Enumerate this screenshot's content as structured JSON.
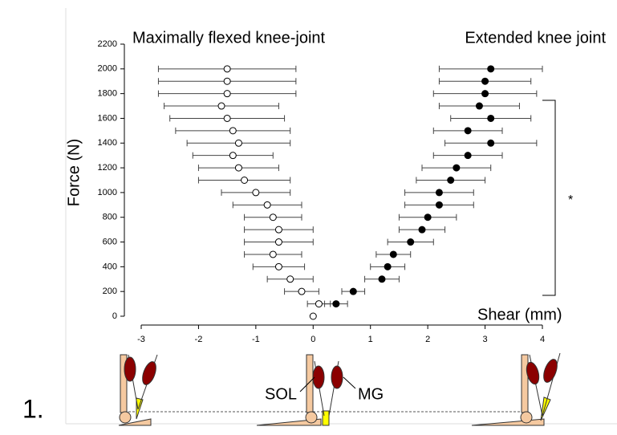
{
  "chart_data": {
    "type": "scatter",
    "ylabel": "Force (N)",
    "xlabel": "Shear (mm)",
    "xlim": [
      -3,
      4
    ],
    "xticks": [
      -3,
      -2,
      -1,
      0,
      1,
      2,
      3,
      4
    ],
    "ylim": [
      0,
      2200
    ],
    "yticks": [
      0,
      200,
      400,
      600,
      800,
      1000,
      1200,
      1400,
      1600,
      1800,
      2000,
      2200
    ],
    "series": [
      {
        "name": "Maximally flexed knee-joint",
        "color": "#ffffff",
        "y": [
          0,
          100,
          200,
          300,
          400,
          500,
          600,
          700,
          800,
          900,
          1000,
          1100,
          1200,
          1300,
          1400,
          1500,
          1600,
          1700,
          1800,
          1900,
          2000
        ],
        "x": [
          0,
          0.1,
          -0.2,
          -0.4,
          -0.6,
          -0.7,
          -0.6,
          -0.6,
          -0.7,
          -0.8,
          -1.0,
          -1.2,
          -1.3,
          -1.4,
          -1.3,
          -1.4,
          -1.5,
          -1.6,
          -1.5,
          -1.5,
          -1.5
        ],
        "xerr": [
          0,
          0.2,
          0.3,
          0.4,
          0.45,
          0.5,
          0.6,
          0.6,
          0.5,
          0.6,
          0.6,
          0.8,
          0.7,
          0.7,
          0.9,
          1.0,
          1.0,
          1.0,
          1.2,
          1.2,
          1.2
        ]
      },
      {
        "name": "Extended knee joint",
        "color": "#000000",
        "y": [
          100,
          200,
          300,
          400,
          500,
          600,
          700,
          800,
          900,
          1000,
          1100,
          1200,
          1300,
          1400,
          1500,
          1600,
          1700,
          1800,
          1900,
          2000
        ],
        "x": [
          0.4,
          0.7,
          1.2,
          1.3,
          1.4,
          1.7,
          1.9,
          2.0,
          2.2,
          2.2,
          2.4,
          2.5,
          2.7,
          3.1,
          2.7,
          3.1,
          2.9,
          3.0,
          3.0,
          3.1
        ],
        "xerr": [
          0.2,
          0.2,
          0.3,
          0.3,
          0.3,
          0.4,
          0.4,
          0.5,
          0.6,
          0.6,
          0.6,
          0.6,
          0.6,
          0.8,
          0.6,
          0.7,
          0.7,
          0.9,
          0.8,
          0.9
        ]
      }
    ],
    "annotations": [
      "*",
      "SOL",
      "MG",
      "1."
    ]
  }
}
